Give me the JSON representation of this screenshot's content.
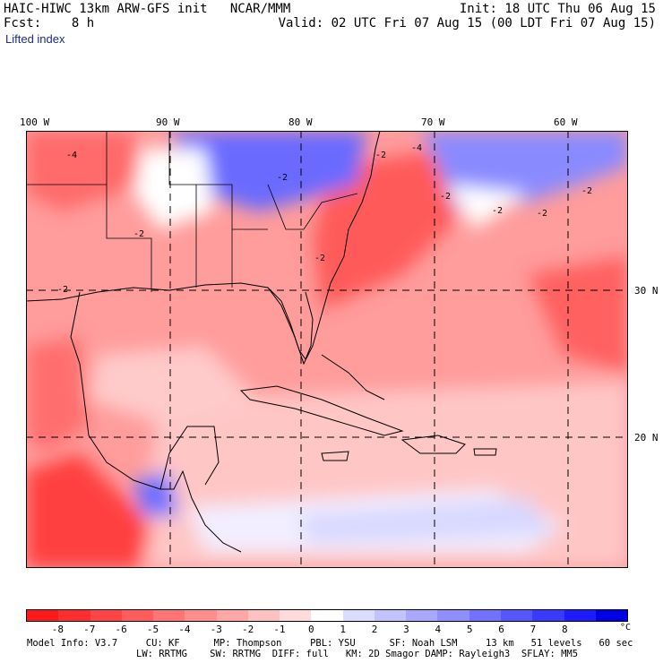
{
  "header": {
    "model_title": "HAIC-HIWC 13km ARW-GFS init   NCAR/MMM",
    "forecast": "Fcst:    8 h",
    "init": "Init: 18 UTC Thu 06 Aug 15",
    "valid": "Valid: 02 UTC Fri 07 Aug 15 (00 LDT Fri 07 Aug 15)"
  },
  "field_name": "Lifted index",
  "map": {
    "longitude_labels": [
      "100 W",
      "90 W",
      "80 W",
      "70 W",
      "60 W"
    ],
    "latitude_labels": [
      "30 N",
      "20 N"
    ],
    "contour_labels": [
      "-4",
      "-4",
      "-2",
      "-2",
      "-2",
      "-2",
      "-2",
      "-2",
      "-2",
      "-2",
      "-2"
    ]
  },
  "colorbar": {
    "ticks": [
      "-8",
      "-7",
      "-6",
      "-5",
      "-4",
      "-3",
      "-2",
      "-1",
      "0",
      "1",
      "2",
      "3",
      "4",
      "5",
      "6",
      "7",
      "8"
    ],
    "unit": "°C",
    "colors": [
      "#ff1a1a",
      "#ff2e2e",
      "#ff4444",
      "#ff5c5c",
      "#ff7474",
      "#ff8d8d",
      "#ffa6a6",
      "#ffc0c0",
      "#ffdada",
      "#ffffff",
      "#dcdcff",
      "#c2c2ff",
      "#a8a8ff",
      "#8e8eff",
      "#7272ff",
      "#5656ff",
      "#3a3aff",
      "#1c1cff",
      "#0000e6"
    ]
  },
  "model_info": {
    "line1": "Model Info: V3.7     CU: KF      MP: Thompson     PBL: YSU      SF: Noah LSM     13 km   51 levels   60 sec",
    "line2": "LW: RRTMG    SW: RRTMG  DIFF: full   KM: 2D Smagor DAMP: Rayleigh3  SFLAY: MM5"
  }
}
